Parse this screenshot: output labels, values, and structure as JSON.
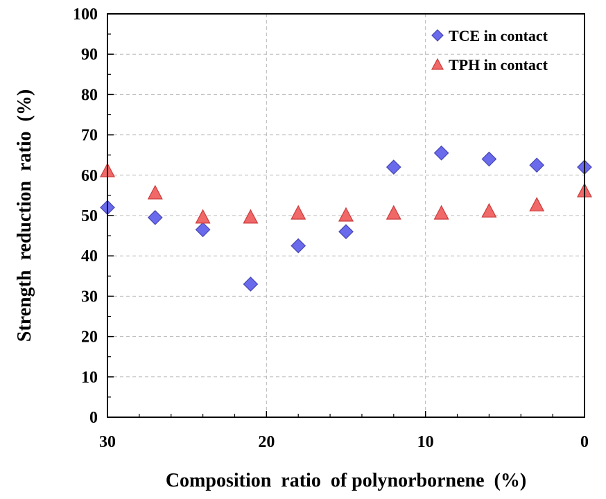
{
  "chart_data": {
    "type": "scatter",
    "title": "",
    "xlabel": "Composition  ratio  of polynorbornene  (%)",
    "ylabel": "Strength  reduction  ratio  (%)",
    "xlim": [
      30,
      0
    ],
    "ylim": [
      0,
      100
    ],
    "x_reversed": true,
    "x_ticks": [
      30,
      20,
      10,
      0
    ],
    "x_tick_labels": [
      "30",
      "20",
      "10",
      "0"
    ],
    "x_minor_step": 2,
    "y_ticks": [
      0,
      10,
      20,
      30,
      40,
      50,
      60,
      70,
      80,
      90,
      100
    ],
    "y_tick_labels": [
      "0",
      "10",
      "20",
      "30",
      "40",
      "50",
      "60",
      "70",
      "80",
      "90",
      "100"
    ],
    "y_minor_step": 5,
    "grid": "dashed at major x ticks 20 and 10, and every y major tick",
    "legend_position": "top-right",
    "series": [
      {
        "name": "TCE in contact",
        "marker": "diamond",
        "color": "#6a6aec",
        "edge_color": "#4646b4",
        "x": [
          30,
          27,
          24,
          21,
          18,
          15,
          12,
          9,
          6,
          3,
          0
        ],
        "y": [
          52,
          49.5,
          46.5,
          33,
          42.5,
          46,
          62,
          65.5,
          64,
          62.5,
          62
        ]
      },
      {
        "name": "TPH in contact",
        "marker": "triangle",
        "color": "#f06868",
        "edge_color": "#cc3c3c",
        "x": [
          30,
          27,
          24,
          21,
          18,
          15,
          12,
          9,
          6,
          3,
          0
        ],
        "y": [
          61,
          55.5,
          49.5,
          49.5,
          50.5,
          50,
          50.5,
          50.5,
          51,
          52.5,
          56
        ]
      }
    ]
  }
}
